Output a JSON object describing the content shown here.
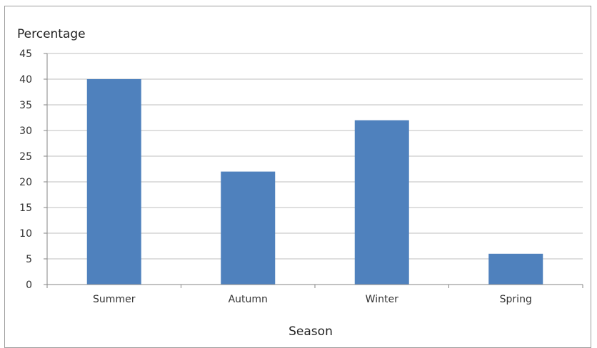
{
  "chart_data": {
    "type": "bar",
    "title": "",
    "xlabel": "Season",
    "ylabel": "Percentage",
    "categories": [
      "Summer",
      "Autumn",
      "Winter",
      "Spring"
    ],
    "values": [
      40,
      22,
      32,
      6
    ],
    "ylim": [
      0,
      45
    ],
    "yticks": [
      0,
      5,
      10,
      15,
      20,
      25,
      30,
      35,
      40,
      45
    ],
    "grid": true,
    "legend": "none",
    "colors": {
      "bar": "#4F81BD",
      "grid": "#BFBFBF",
      "axis": "#868686"
    }
  }
}
